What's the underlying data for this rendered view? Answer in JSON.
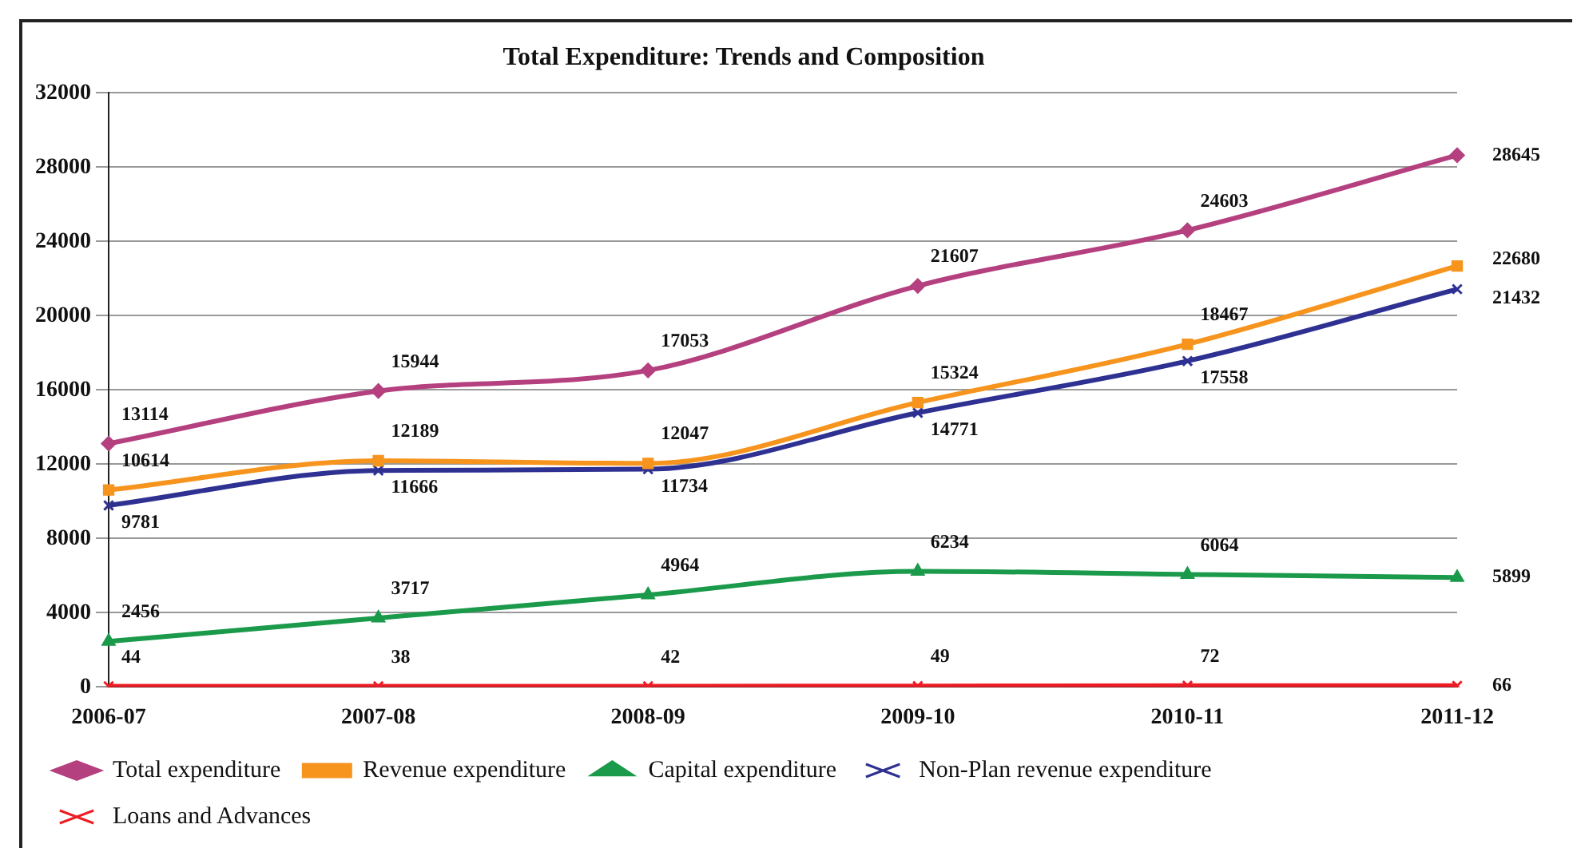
{
  "chart_data": {
    "type": "line",
    "title": "Total Expenditure: Trends and Composition",
    "categories": [
      "2006-07",
      "2007-08",
      "2008-09",
      "2009-10",
      "2010-11",
      "2011-12"
    ],
    "series": [
      {
        "name": "Total expenditure",
        "color": "#b5407f",
        "marker": "diamond",
        "values": [
          13114,
          15944,
          17053,
          21607,
          24603,
          28645
        ]
      },
      {
        "name": "Revenue expenditure",
        "color": "#f7941d",
        "marker": "square",
        "values": [
          10614,
          12189,
          12047,
          15324,
          18467,
          22680
        ]
      },
      {
        "name": "Capital expenditure",
        "color": "#1a9a4a",
        "marker": "triangle",
        "values": [
          2456,
          3717,
          4964,
          6234,
          6064,
          5899
        ]
      },
      {
        "name": "Non-Plan revenue expenditure",
        "color": "#2e3192",
        "marker": "cross",
        "values": [
          9781,
          11666,
          11734,
          14771,
          17558,
          21432
        ]
      },
      {
        "name": "Loans and Advances",
        "color": "#ed1c24",
        "marker": "cross",
        "values": [
          44,
          38,
          42,
          49,
          72,
          66
        ]
      }
    ],
    "ylim": [
      0,
      32000
    ],
    "yticks": [
      0,
      4000,
      8000,
      12000,
      16000,
      20000,
      24000,
      28000,
      32000
    ],
    "grid": "y",
    "legend": "bottom",
    "data_labels": true,
    "line_style": "solid"
  }
}
